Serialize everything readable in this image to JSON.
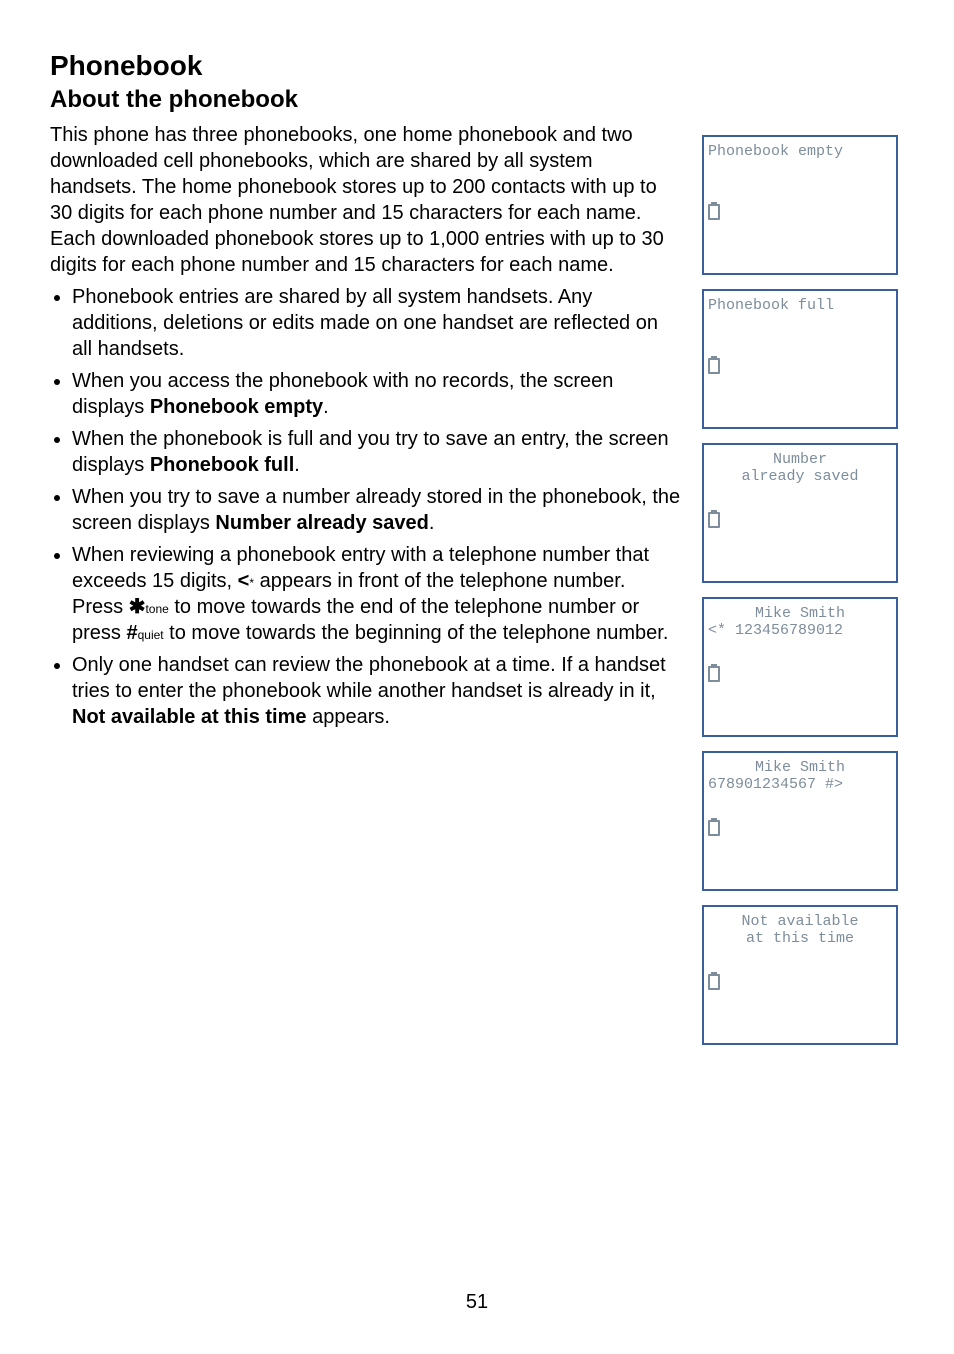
{
  "title": "Phonebook",
  "subtitle": "About the phonebook",
  "intro": "This phone has three phonebooks, one home phonebook and two downloaded cell phonebooks, which are shared by all system handsets. The home phonebook stores up to 200 contacts with up to 30 digits for each phone number and 15 characters for each name. Each downloaded phonebook stores up to 1,000 entries with up to 30 digits for each phone number and 15 characters for each name.",
  "bullets": {
    "b1": "Phonebook entries are shared by all system handsets. Any additions, deletions or edits made on one handset are reflected on all handsets.",
    "b2_pre": "When you access the phonebook with no records, the screen displays ",
    "b2_bold": "Phonebook empty",
    "b2_post": ".",
    "b3_pre": "When the phonebook is full and you try to save an entry, the screen displays ",
    "b3_bold": "Phonebook full",
    "b3_post": ".",
    "b4_pre": "When you try to save a number already stored in the phonebook, the screen displays ",
    "b4_bold": "Number already saved",
    "b4_post": ".",
    "b5_pre": "When reviewing a phonebook entry with a telephone number that exceeds 15 digits, ",
    "b5_sym1": "<",
    "b5_mid1": " appears in front of the telephone number. Press ",
    "b5_key1": "✱",
    "b5_key1_sub": "tone",
    "b5_mid2": " to move towards the end of the telephone number or press ",
    "b5_key2": "#",
    "b5_key2_sub": "quiet",
    "b5_post": " to move towards the beginning of the telephone number.",
    "b6_pre": "Only one handset can review the phonebook at a time. If a handset tries to enter the phonebook while another handset is already in it, ",
    "b6_bold": "Not available at this time",
    "b6_post": " appears."
  },
  "screens": {
    "s1": {
      "line1": "Phonebook empty",
      "line2": ""
    },
    "s2": {
      "line1": "Phonebook full",
      "line2": ""
    },
    "s3": {
      "line1": "Number",
      "line2": "already saved"
    },
    "s4": {
      "line1": "Mike Smith",
      "line2": "<* 123456789012"
    },
    "s5": {
      "line1": "Mike Smith",
      "line2": "678901234567 #>"
    },
    "s6": {
      "line1": "Not available",
      "line2": "at this time"
    }
  },
  "page_number": "51"
}
